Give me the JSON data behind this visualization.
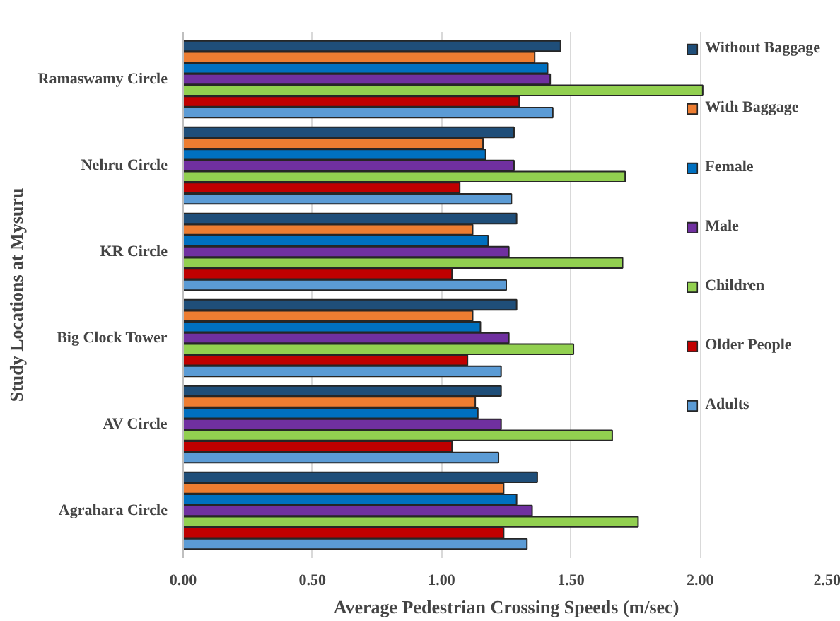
{
  "chart_data": {
    "type": "bar",
    "orientation": "horizontal",
    "xlabel": "Average Pedestrian Crossing Speeds (m/sec)",
    "ylabel": "Study Locations at Mysuru",
    "categories": [
      "Ramaswamy Circle",
      "Nehru Circle",
      "KR Circle",
      "Big Clock Tower",
      "AV Circle",
      "Agrahara Circle"
    ],
    "series": [
      {
        "name": "Without Baggage",
        "color": "#1f4e79",
        "values": [
          1.46,
          1.28,
          1.29,
          1.29,
          1.23,
          1.37
        ]
      },
      {
        "name": "With Baggage",
        "color": "#ed7d31",
        "values": [
          1.36,
          1.16,
          1.12,
          1.12,
          1.13,
          1.24
        ]
      },
      {
        "name": "Female",
        "color": "#0070c0",
        "values": [
          1.41,
          1.17,
          1.18,
          1.15,
          1.14,
          1.29
        ]
      },
      {
        "name": "Male",
        "color": "#7030a0",
        "values": [
          1.42,
          1.28,
          1.26,
          1.26,
          1.23,
          1.35
        ]
      },
      {
        "name": "Children",
        "color": "#92d050",
        "values": [
          2.01,
          1.71,
          1.7,
          1.51,
          1.66,
          1.76
        ]
      },
      {
        "name": "Older People",
        "color": "#c00000",
        "values": [
          1.3,
          1.07,
          1.04,
          1.1,
          1.04,
          1.24
        ]
      },
      {
        "name": "Adults",
        "color": "#5b9bd5",
        "values": [
          1.43,
          1.27,
          1.25,
          1.23,
          1.22,
          1.33
        ]
      }
    ],
    "xlim": [
      0,
      2.5
    ],
    "xticks": [
      {
        "value": 0,
        "label": "0.00"
      },
      {
        "value": 0.5,
        "label": "0.50"
      },
      {
        "value": 1,
        "label": "1.00"
      },
      {
        "value": 1.5,
        "label": "1.50"
      },
      {
        "value": 2,
        "label": "2.00"
      },
      {
        "value": 2.5,
        "label": "2.50"
      }
    ],
    "grid": "x",
    "legend": "right"
  }
}
